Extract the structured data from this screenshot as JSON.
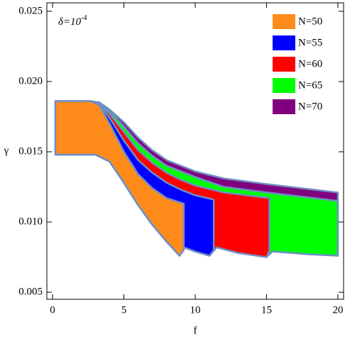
{
  "chart_data": {
    "type": "region",
    "annotation": {
      "base": "δ=10",
      "exponent": "-4"
    },
    "x_label": "f",
    "y_label": "γ",
    "xlim": [
      -0.4,
      20.4
    ],
    "xticks": [
      0,
      5,
      10,
      15,
      20
    ],
    "ylim": [
      0.0045,
      0.0256
    ],
    "yticks": [
      0.005,
      {
        "value": 0.01,
        "label": "0.010"
      },
      0.015,
      {
        "value": 0.02,
        "label": "0.020"
      },
      0.025
    ],
    "outline_color": "#6f8fc4",
    "legend": "top-right",
    "series": [
      {
        "name": "N=70",
        "color": "#800080",
        "x": [
          2.7,
          3.3,
          4,
          5,
          6,
          7,
          8,
          10,
          12,
          15,
          20,
          20,
          15,
          12,
          10,
          8,
          7,
          6,
          5,
          4,
          3.3
        ],
        "values": [
          0.0186,
          0.0185,
          0.018,
          0.0171,
          0.016,
          0.0151,
          0.0144,
          0.0136,
          0.0131,
          0.0127,
          0.0121,
          0.0115,
          0.0121,
          0.0125,
          0.0132,
          0.014,
          0.0147,
          0.0156,
          0.0168,
          0.0179,
          0.0185
        ]
      },
      {
        "name": "N=65",
        "color": "#00ff00",
        "x": [
          0.2,
          2.7,
          3.3,
          4,
          5,
          6,
          7,
          8,
          10,
          12,
          15,
          20,
          20,
          18,
          15.4,
          15.0,
          13,
          11.5,
          11.0,
          10,
          9.2,
          8.9,
          8,
          7,
          6,
          5,
          4,
          3,
          0.2
        ],
        "values": [
          0.0186,
          0.0186,
          0.0185,
          0.0179,
          0.0168,
          0.0156,
          0.0147,
          0.014,
          0.0132,
          0.0125,
          0.0121,
          0.0115,
          0.0076,
          0.0077,
          0.0079,
          0.0075,
          0.0078,
          0.0082,
          0.0076,
          0.0079,
          0.0082,
          0.0076,
          0.0086,
          0.0098,
          0.0112,
          0.0128,
          0.0143,
          0.0148,
          0.0148
        ]
      },
      {
        "name": "N=60",
        "color": "#ff0000",
        "x": [
          0.2,
          2.7,
          3.3,
          4,
          5,
          6,
          7,
          8,
          9,
          10,
          12,
          15.2,
          15.2,
          15.0,
          13,
          11.5,
          11.0,
          10,
          9.2,
          8.9,
          8,
          7,
          6,
          5,
          4,
          3,
          0.2
        ],
        "values": [
          0.0186,
          0.0186,
          0.0184,
          0.0177,
          0.0164,
          0.0151,
          0.0142,
          0.0135,
          0.013,
          0.0126,
          0.0121,
          0.0117,
          0.008,
          0.0075,
          0.0078,
          0.0082,
          0.0076,
          0.0079,
          0.0082,
          0.0076,
          0.0086,
          0.0098,
          0.0112,
          0.0128,
          0.0143,
          0.0148,
          0.0148
        ]
      },
      {
        "name": "N=55",
        "color": "#0000ff",
        "x": [
          0.2,
          2.7,
          3.3,
          4,
          5,
          6,
          7,
          8,
          9,
          10,
          11.3,
          11.3,
          11.0,
          10,
          9.2,
          8.9,
          8,
          7,
          6,
          5,
          4,
          3,
          0.2
        ],
        "values": [
          0.0186,
          0.0186,
          0.0184,
          0.0174,
          0.0158,
          0.0144,
          0.0135,
          0.0128,
          0.0123,
          0.0119,
          0.0116,
          0.008,
          0.0076,
          0.0079,
          0.0082,
          0.0076,
          0.0086,
          0.0098,
          0.0112,
          0.0128,
          0.0143,
          0.0148,
          0.0148
        ]
      },
      {
        "name": "N=50",
        "color": "#ff8c1a",
        "x": [
          0.2,
          2.7,
          3.3,
          4,
          5,
          6,
          7,
          8,
          9.2,
          9.2,
          8.9,
          8,
          7,
          6,
          5,
          4,
          3,
          0.2
        ],
        "values": [
          0.0186,
          0.0186,
          0.0183,
          0.017,
          0.015,
          0.0134,
          0.0124,
          0.0117,
          0.0113,
          0.008,
          0.0076,
          0.0086,
          0.0098,
          0.0112,
          0.0128,
          0.0143,
          0.0148,
          0.0148
        ]
      }
    ]
  }
}
